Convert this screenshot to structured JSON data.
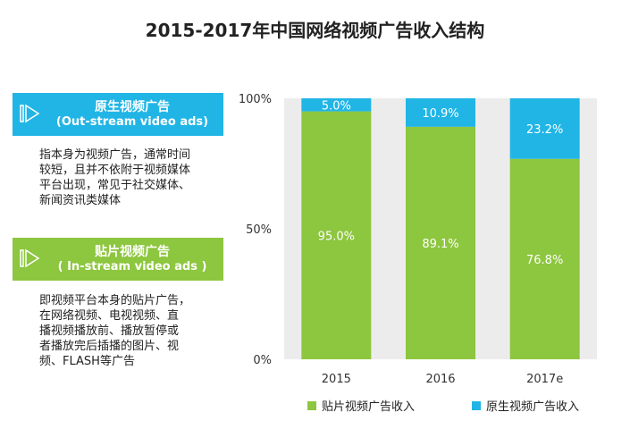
{
  "title": "2015-2017年中国网络视频广告收入结构",
  "panel1": {
    "heading": "原生视频广告",
    "subheading": "(Out-stream video ads)",
    "description": "指本身为视频广告，通常时间\n较短，且并不依附于视频媒体\n平台出现，常见于社交媒体、\n新闻资讯类媒体",
    "icon": "play-icon"
  },
  "panel2": {
    "heading": "贴片视频广告",
    "subheading": "( In-stream video ads )",
    "description": "即视频平台本身的贴片广告，\n在网络视频、电视视频、直\n播视频播放前、播放暂停或\n者播放完后插播的图片、视\n频、FLASH等广告",
    "icon": "play-icon"
  },
  "colors": {
    "instream": "#8dc63f",
    "outstream": "#21b5e6",
    "plot_bg": "#ececec"
  },
  "chart_data": {
    "type": "bar",
    "stacked": true,
    "categories": [
      "2015",
      "2016",
      "2017e"
    ],
    "series": [
      {
        "name": "贴片视频广告收入",
        "values": [
          95.0,
          89.1,
          76.8
        ],
        "labels": [
          "95.0%",
          "89.1%",
          "76.8%"
        ]
      },
      {
        "name": "原生视频广告收入",
        "values": [
          5.0,
          10.9,
          23.2
        ],
        "labels": [
          "5.0%",
          "10.9%",
          "23.2%"
        ]
      }
    ],
    "ylim": [
      0,
      100
    ],
    "yticks": [
      "0%",
      "50%",
      "100%"
    ],
    "legend": "bottom"
  }
}
